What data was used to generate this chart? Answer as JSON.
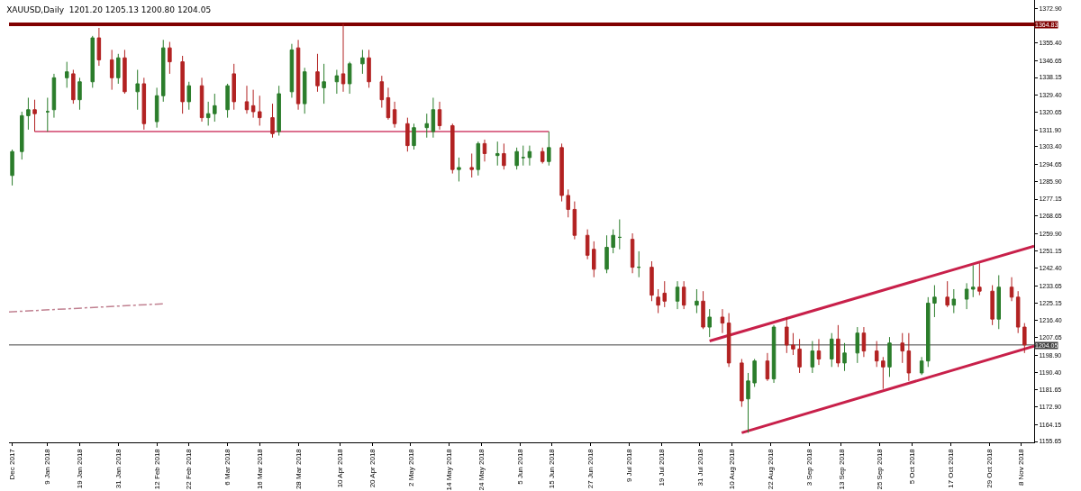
{
  "chart_data": {
    "type": "candlestick",
    "title": "XAUUSD,Daily  1201.20 1205.13 1200.80 1204.05",
    "colors": [
      "#2b7d2b",
      "#2b7d2b",
      "#2b7d2b",
      "#b22222",
      "#2b7d2b",
      "#2b7d2b",
      "#2b7d2b",
      "#b22222",
      "#2b7d2b",
      "#2b7d2b",
      "#b22222",
      "#b22222",
      "#2b7d2b",
      "#b22222",
      "#2b7d2b",
      "#b22222",
      "#2b7d2b",
      "#2b7d2b",
      "#b22222",
      "#b22222",
      "#2b7d2b",
      "#b22222",
      "#2b7d2b",
      "#2b7d2b",
      "#2b7d2b",
      "#b22222",
      "#b22222",
      "#b22222",
      "#b22222",
      "#b22222",
      "#2b7d2b",
      "#2b7d2b",
      "#b22222",
      "#2b7d2b",
      "#b22222",
      "#2b7d2b",
      "#2b7d2b",
      "#b22222",
      "#2b7d2b",
      "#2b7d2b",
      "#b22222",
      "#b22222",
      "#b22222",
      "#b22222",
      "#b22222",
      "#2b7d2b",
      "#2b7d2b",
      "#2b7d2b",
      "#b22222",
      "#b22222",
      "#2b7d2b",
      "#b22222",
      "#2b7d2b",
      "#b22222",
      "#2b7d2b",
      "#b22222",
      "#2b7d2b",
      "#2b7d2b",
      "#2b7d2b",
      "#b22222",
      "#2b7d2b",
      "#b22222",
      "#b22222",
      "#b22222",
      "#b22222",
      "#b22222",
      "#2b7d2b",
      "#2b7d2b",
      "#2b7d2b",
      "#b22222",
      "#2b7d2b",
      "#b22222",
      "#b22222",
      "#b22222",
      "#2b7d2b",
      "#b22222",
      "#2b7d2b",
      "#b22222",
      "#2b7d2b",
      "#b22222",
      "#b22222",
      "#b22222",
      "#2b7d2b",
      "#2b7d2b",
      "#b22222",
      "#2b7d2b",
      "#b22222",
      "#b22222",
      "#b22222",
      "#2b7d2b",
      "#b22222",
      "#2b7d2b",
      "#b22222",
      "#2b7d2b",
      "#2b7d2b",
      "#b22222",
      "#b22222",
      "#b22222",
      "#2b7d2b",
      "#b22222",
      "#b22222",
      "#2b7d2b",
      "#2b7d2b",
      "#2b7d2b",
      "#b22222",
      "#2b7d2b",
      "#2b7d2b",
      "#2b7d2b",
      "#b22222",
      "#b22222",
      "#2b7d2b",
      "#b22222",
      "#b22222",
      "#b22222"
    ],
    "x": [
      "2017-12-29",
      "2018-01-01",
      "2018-01-03",
      "2018-01-05",
      "2018-01-09",
      "2018-01-11",
      "2018-01-15",
      "2018-01-17",
      "2018-01-19",
      "2018-01-23",
      "2018-01-25",
      "2018-01-29",
      "2018-01-31",
      "2018-02-02",
      "2018-02-06",
      "2018-02-08",
      "2018-02-12",
      "2018-02-14",
      "2018-02-16",
      "2018-02-20",
      "2018-02-22",
      "2018-02-26",
      "2018-02-28",
      "2018-03-02",
      "2018-03-06",
      "2018-03-08",
      "2018-03-12",
      "2018-03-14",
      "2018-03-16",
      "2018-03-20",
      "2018-03-22",
      "2018-03-26",
      "2018-03-28",
      "2018-03-30",
      "2018-04-03",
      "2018-04-05",
      "2018-04-09",
      "2018-04-11",
      "2018-04-13",
      "2018-04-17",
      "2018-04-19",
      "2018-04-23",
      "2018-04-25",
      "2018-04-27",
      "2018-05-01",
      "2018-05-03",
      "2018-05-07",
      "2018-05-09",
      "2018-05-11",
      "2018-05-15",
      "2018-05-17",
      "2018-05-21",
      "2018-05-23",
      "2018-05-25",
      "2018-05-29",
      "2018-05-31",
      "2018-06-04",
      "2018-06-06",
      "2018-06-08",
      "2018-06-12",
      "2018-06-14",
      "2018-06-18",
      "2018-06-20",
      "2018-06-22",
      "2018-06-26",
      "2018-06-28",
      "2018-07-02",
      "2018-07-04",
      "2018-07-06",
      "2018-07-10",
      "2018-07-12",
      "2018-07-16",
      "2018-07-18",
      "2018-07-20",
      "2018-07-24",
      "2018-07-26",
      "2018-07-30",
      "2018-08-01",
      "2018-08-03",
      "2018-08-07",
      "2018-08-09",
      "2018-08-13",
      "2018-08-15",
      "2018-08-17",
      "2018-08-21",
      "2018-08-23",
      "2018-08-27",
      "2018-08-29",
      "2018-08-31",
      "2018-09-04",
      "2018-09-06",
      "2018-09-10",
      "2018-09-12",
      "2018-09-14",
      "2018-09-18",
      "2018-09-20",
      "2018-09-24",
      "2018-09-26",
      "2018-09-28",
      "2018-10-02",
      "2018-10-04",
      "2018-10-08",
      "2018-10-10",
      "2018-10-12",
      "2018-10-16",
      "2018-10-18",
      "2018-10-22",
      "2018-10-24",
      "2018-10-26",
      "2018-10-30",
      "2018-11-01",
      "2018-11-05",
      "2018-11-07",
      "2018-11-09"
    ],
    "ohlc": [
      [
        1289,
        1302,
        1284,
        1301
      ],
      [
        1301,
        1321,
        1297,
        1319
      ],
      [
        1319,
        1328,
        1312,
        1322
      ],
      [
        1322,
        1327,
        1311,
        1320
      ],
      [
        1321,
        1328,
        1311,
        1321
      ],
      [
        1322,
        1340,
        1318,
        1338
      ],
      [
        1338,
        1346,
        1333,
        1341
      ],
      [
        1340,
        1342,
        1325,
        1327
      ],
      [
        1327,
        1338,
        1322,
        1336
      ],
      [
        1336,
        1359,
        1333,
        1358
      ],
      [
        1358,
        1363,
        1344,
        1347
      ],
      [
        1347,
        1352,
        1332,
        1338
      ],
      [
        1338,
        1350,
        1335,
        1348
      ],
      [
        1348,
        1352,
        1330,
        1331
      ],
      [
        1331,
        1342,
        1322,
        1335
      ],
      [
        1335,
        1338,
        1312,
        1315
      ],
      [
        1316,
        1333,
        1313,
        1329
      ],
      [
        1329,
        1357,
        1326,
        1353
      ],
      [
        1353,
        1356,
        1340,
        1346
      ],
      [
        1346,
        1349,
        1320,
        1326
      ],
      [
        1326,
        1336,
        1322,
        1334
      ],
      [
        1334,
        1338,
        1316,
        1318
      ],
      [
        1318,
        1326,
        1314,
        1320
      ],
      [
        1320,
        1330,
        1316,
        1324
      ],
      [
        1322,
        1335,
        1318,
        1334
      ],
      [
        1340,
        1345,
        1322,
        1326
      ],
      [
        1326,
        1334,
        1320,
        1322
      ],
      [
        1324,
        1332,
        1318,
        1321
      ],
      [
        1321,
        1329,
        1314,
        1318
      ],
      [
        1318,
        1325,
        1308,
        1310
      ],
      [
        1311,
        1334,
        1309,
        1330
      ],
      [
        1331,
        1355,
        1328,
        1352
      ],
      [
        1353,
        1357,
        1322,
        1325
      ],
      [
        1325,
        1343,
        1320,
        1341
      ],
      [
        1341,
        1350,
        1331,
        1334
      ],
      [
        1333,
        1345,
        1325,
        1336
      ],
      [
        1336,
        1342,
        1330,
        1339
      ],
      [
        1340,
        1365,
        1331,
        1335
      ],
      [
        1335,
        1346,
        1330,
        1345
      ],
      [
        1345,
        1352,
        1340,
        1348
      ],
      [
        1348,
        1352,
        1333,
        1336
      ],
      [
        1336,
        1339,
        1323,
        1327
      ],
      [
        1328,
        1333,
        1317,
        1318
      ],
      [
        1322,
        1326,
        1313,
        1315
      ],
      [
        1315,
        1318,
        1301,
        1304
      ],
      [
        1304,
        1315,
        1302,
        1313
      ],
      [
        1313,
        1320,
        1308,
        1315
      ],
      [
        1311,
        1328,
        1308,
        1322
      ],
      [
        1322,
        1326,
        1312,
        1314
      ],
      [
        1314,
        1315,
        1290,
        1292
      ],
      [
        1292,
        1298,
        1286,
        1293
      ],
      [
        1293,
        1300,
        1288,
        1292
      ],
      [
        1292,
        1306,
        1289,
        1305
      ],
      [
        1305,
        1307,
        1296,
        1300
      ],
      [
        1299,
        1306,
        1294,
        1300
      ],
      [
        1300,
        1305,
        1292,
        1294
      ],
      [
        1294,
        1303,
        1292,
        1301
      ],
      [
        1298,
        1304,
        1294,
        1298
      ],
      [
        1298,
        1304,
        1294,
        1301
      ],
      [
        1301,
        1303,
        1295,
        1296
      ],
      [
        1296,
        1311,
        1294,
        1303
      ],
      [
        1303,
        1305,
        1276,
        1279
      ],
      [
        1279,
        1282,
        1268,
        1272
      ],
      [
        1272,
        1276,
        1257,
        1259
      ],
      [
        1259,
        1262,
        1247,
        1249
      ],
      [
        1252,
        1256,
        1238,
        1242
      ],
      [
        1242,
        1259,
        1240,
        1253
      ],
      [
        1253,
        1262,
        1250,
        1259
      ],
      [
        1258,
        1267,
        1252,
        1258
      ],
      [
        1257,
        1260,
        1240,
        1243
      ],
      [
        1243,
        1251,
        1238,
        1243
      ],
      [
        1243,
        1246,
        1226,
        1229
      ],
      [
        1228,
        1232,
        1220,
        1224
      ],
      [
        1230,
        1236,
        1223,
        1226
      ],
      [
        1226,
        1236,
        1222,
        1233
      ],
      [
        1233,
        1236,
        1222,
        1224
      ],
      [
        1224,
        1232,
        1220,
        1226
      ],
      [
        1226,
        1231,
        1212,
        1213
      ],
      [
        1213,
        1222,
        1208,
        1218
      ],
      [
        1218,
        1222,
        1210,
        1215
      ],
      [
        1215,
        1220,
        1193,
        1195
      ],
      [
        1195,
        1197,
        1173,
        1176
      ],
      [
        1177,
        1190,
        1160,
        1186
      ],
      [
        1185,
        1197,
        1183,
        1196
      ],
      [
        1196,
        1200,
        1186,
        1187
      ],
      [
        1187,
        1214,
        1185,
        1213
      ],
      [
        1213,
        1218,
        1200,
        1204
      ],
      [
        1204,
        1210,
        1199,
        1202
      ],
      [
        1202,
        1207,
        1190,
        1193
      ],
      [
        1193,
        1206,
        1190,
        1201
      ],
      [
        1201,
        1207,
        1194,
        1197
      ],
      [
        1197,
        1210,
        1193,
        1207
      ],
      [
        1207,
        1214,
        1193,
        1195
      ],
      [
        1195,
        1205,
        1191,
        1200
      ],
      [
        1200,
        1213,
        1195,
        1210
      ],
      [
        1210,
        1213,
        1198,
        1201
      ],
      [
        1201,
        1206,
        1193,
        1196
      ],
      [
        1196,
        1198,
        1182,
        1193
      ],
      [
        1193,
        1208,
        1188,
        1205
      ],
      [
        1205,
        1210,
        1195,
        1201
      ],
      [
        1201,
        1210,
        1186,
        1190
      ],
      [
        1190,
        1198,
        1189,
        1196
      ],
      [
        1196,
        1228,
        1193,
        1225
      ],
      [
        1225,
        1234,
        1218,
        1228
      ],
      [
        1228,
        1236,
        1223,
        1224
      ],
      [
        1224,
        1232,
        1220,
        1227
      ],
      [
        1227,
        1235,
        1222,
        1232
      ],
      [
        1232,
        1244,
        1228,
        1233
      ],
      [
        1233,
        1245,
        1229,
        1231
      ],
      [
        1231,
        1234,
        1214,
        1217
      ],
      [
        1217,
        1239,
        1212,
        1233
      ],
      [
        1233,
        1238,
        1226,
        1228
      ],
      [
        1228,
        1231,
        1210,
        1213
      ],
      [
        1213,
        1215,
        1200,
        1204.05
      ]
    ],
    "series": [
      {
        "type": "line",
        "color": "#c8204a",
        "x": [
          "2018-08-03",
          "2018-11-12"
        ],
        "values": [
          1206,
          1253.6
        ]
      },
      {
        "type": "line",
        "color": "#c8204a",
        "x": [
          "2018-08-13",
          "2018-11-12"
        ],
        "values": [
          1160,
          1203.5
        ]
      },
      {
        "type": "line",
        "color": "#d0406a",
        "x": [
          "2018-01-05",
          "2018-06-14"
        ],
        "values": [
          1311,
          1311
        ]
      },
      {
        "type": "line",
        "color": "#c08090",
        "line_style": "dashed",
        "x": [
          "2017-12-28",
          "2018-02-14"
        ],
        "values": [
          1220.6,
          1224.7
        ]
      }
    ],
    "ref_lines": [
      {
        "axis": "y",
        "value": 1364.83,
        "label": "1364.83",
        "color": "#800000"
      },
      {
        "axis": "y",
        "value": 1204.05,
        "label": "1204.05",
        "color": "#404040"
      }
    ],
    "xlim": [
      "2017-12-28",
      "2018-11-12"
    ],
    "xticks": [
      {
        "value": "2017-12-29",
        "label": "Dec 2017"
      },
      {
        "value": "2018-01-09",
        "label": "9 Jan 2018"
      },
      {
        "value": "2018-01-19",
        "label": "19 Jan 2018"
      },
      {
        "value": "2018-01-31",
        "label": "31 Jan 2018"
      },
      {
        "value": "2018-02-12",
        "label": "12 Feb 2018"
      },
      {
        "value": "2018-02-22",
        "label": "22 Feb 2018"
      },
      {
        "value": "2018-03-06",
        "label": "6 Mar 2018"
      },
      {
        "value": "2018-03-16",
        "label": "16 Mar 2018"
      },
      {
        "value": "2018-03-28",
        "label": "28 Mar 2018"
      },
      {
        "value": "2018-04-10",
        "label": "10 Apr 2018"
      },
      {
        "value": "2018-04-20",
        "label": "20 Apr 2018"
      },
      {
        "value": "2018-05-02",
        "label": "2 May 2018"
      },
      {
        "value": "2018-05-14",
        "label": "14 May 2018"
      },
      {
        "value": "2018-05-24",
        "label": "24 May 2018"
      },
      {
        "value": "2018-06-05",
        "label": "5 Jun 2018"
      },
      {
        "value": "2018-06-15",
        "label": "15 Jun 2018"
      },
      {
        "value": "2018-06-27",
        "label": "27 Jun 2018"
      },
      {
        "value": "2018-07-09",
        "label": "9 Jul 2018"
      },
      {
        "value": "2018-07-19",
        "label": "19 Jul 2018"
      },
      {
        "value": "2018-07-31",
        "label": "31 Jul 2018"
      },
      {
        "value": "2018-08-10",
        "label": "10 Aug 2018"
      },
      {
        "value": "2018-08-22",
        "label": "22 Aug 2018"
      },
      {
        "value": "2018-09-03",
        "label": "3 Sep 2018"
      },
      {
        "value": "2018-09-13",
        "label": "13 Sep 2018"
      },
      {
        "value": "2018-09-25",
        "label": "25 Sep 2018"
      },
      {
        "value": "2018-10-05",
        "label": "5 Oct 2018"
      },
      {
        "value": "2018-10-17",
        "label": "17 Oct 2018"
      },
      {
        "value": "2018-10-29",
        "label": "29 Oct 2018"
      },
      {
        "value": "2018-11-08",
        "label": "8 Nov 2018"
      }
    ],
    "ylim": [
      1155.2,
      1377.0
    ],
    "yticks": [
      {
        "value": 1155.65,
        "label": "1155.65"
      },
      {
        "value": 1164.15,
        "label": "1164.15"
      },
      {
        "value": 1172.9,
        "label": "1172.90"
      },
      {
        "value": 1181.65,
        "label": "1181.65"
      },
      {
        "value": 1190.4,
        "label": "1190.40"
      },
      {
        "value": 1198.9,
        "label": "1198.90"
      },
      {
        "value": 1207.65,
        "label": "1207.65"
      },
      {
        "value": 1216.4,
        "label": "1216.40"
      },
      {
        "value": 1225.15,
        "label": "1225.15"
      },
      {
        "value": 1233.65,
        "label": "1233.65"
      },
      {
        "value": 1242.4,
        "label": "1242.40"
      },
      {
        "value": 1251.15,
        "label": "1251.15"
      },
      {
        "value": 1259.9,
        "label": "1259.90"
      },
      {
        "value": 1268.65,
        "label": "1268.65"
      },
      {
        "value": 1277.15,
        "label": "1277.15"
      },
      {
        "value": 1285.9,
        "label": "1285.90"
      },
      {
        "value": 1294.65,
        "label": "1294.65"
      },
      {
        "value": 1303.4,
        "label": "1303.40"
      },
      {
        "value": 1311.9,
        "label": "1311.90"
      },
      {
        "value": 1320.65,
        "label": "1320.65"
      },
      {
        "value": 1329.4,
        "label": "1329.40"
      },
      {
        "value": 1338.15,
        "label": "1338.15"
      },
      {
        "value": 1346.65,
        "label": "1346.65"
      },
      {
        "value": 1355.4,
        "label": "1355.40"
      },
      {
        "value": 1372.9,
        "label": "1372.90"
      }
    ],
    "grid": false
  }
}
